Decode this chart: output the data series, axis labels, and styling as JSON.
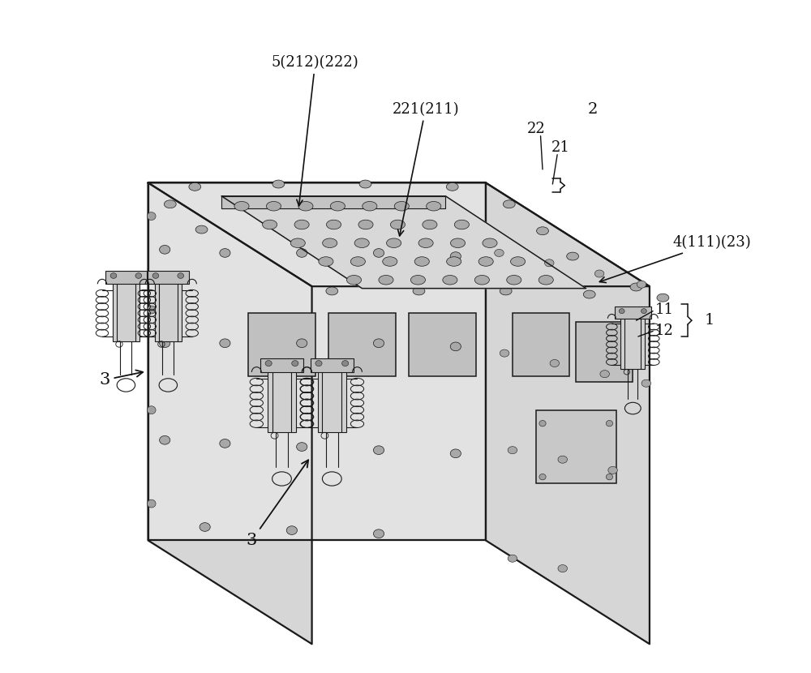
{
  "bg_color": "#ffffff",
  "lc": "#1a1a1a",
  "lw": 1.6,
  "lw_thin": 0.8,
  "lw_med": 1.1,
  "figsize": [
    10,
    8.3
  ],
  "dpi": 100,
  "box": {
    "face_left_fill": "#d6d6d6",
    "face_front_fill": "#e2e2e2",
    "face_top_fill": "#efefef",
    "plate_fill": "#d8d8d8",
    "plate_side_fill": "#c4c4c4",
    "hole_fill": "#aaaaaa",
    "win_fill": "#c0c0c0",
    "sq_fill": "#c8c8c8"
  },
  "annot_fontsize": 13,
  "annot_fontsize_large": 14,
  "annot_color": "#111111"
}
